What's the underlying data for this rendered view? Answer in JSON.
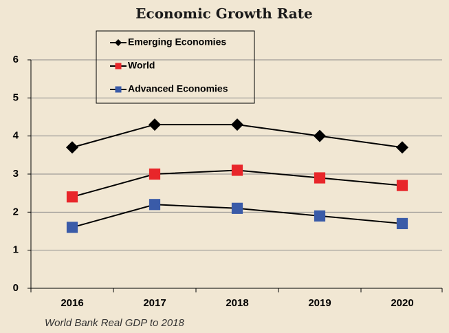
{
  "chart_data": {
    "type": "line",
    "title": "Economic Growth Rate",
    "categories": [
      "2016",
      "2017",
      "2018",
      "2019",
      "2020"
    ],
    "series": [
      {
        "name": "Emerging Economies",
        "color": "#000000",
        "marker": "diamond",
        "values": [
          3.7,
          4.3,
          4.3,
          4.0,
          3.7
        ]
      },
      {
        "name": "World",
        "color": "#e8262a",
        "marker": "square",
        "values": [
          2.4,
          3.0,
          3.1,
          2.9,
          2.7
        ]
      },
      {
        "name": "Advanced Economies",
        "color": "#3a5ba8",
        "marker": "square",
        "values": [
          1.6,
          2.2,
          2.1,
          1.9,
          1.7
        ]
      }
    ],
    "line_color": "#000000",
    "ylim": [
      0,
      6
    ],
    "yticks": [
      0,
      1,
      2,
      3,
      4,
      5,
      6
    ],
    "grid": true,
    "legend": "top-left",
    "annotations": [
      "World Bank Real GDP to 2018"
    ]
  }
}
